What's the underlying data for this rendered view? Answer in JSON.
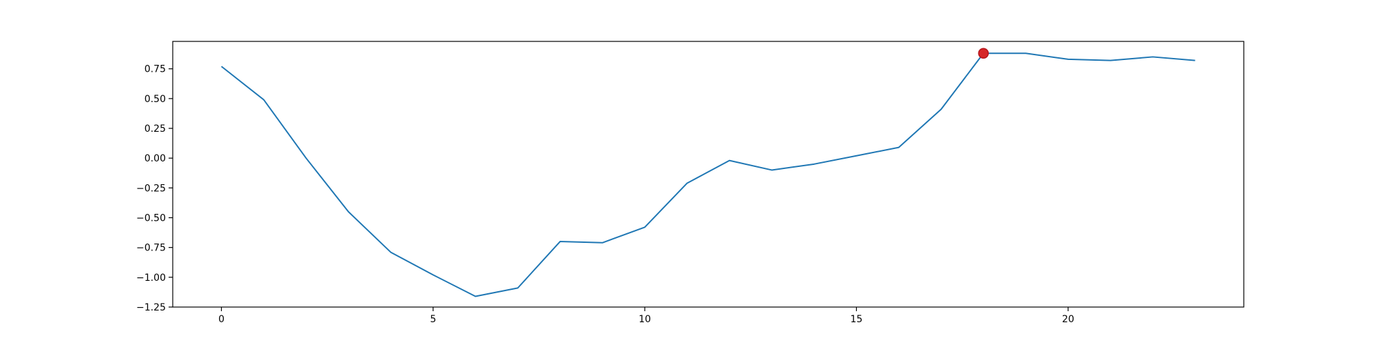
{
  "chart_data": {
    "type": "line",
    "title": "",
    "xlabel": "",
    "ylabel": "",
    "xlim": [
      -1.15,
      24.15
    ],
    "ylim": [
      -1.25,
      0.98
    ],
    "xticks": [
      0,
      5,
      10,
      15,
      20
    ],
    "xtick_labels": [
      "0",
      "5",
      "10",
      "15",
      "20"
    ],
    "yticks": [
      0.75,
      0.5,
      0.25,
      0.0,
      -0.25,
      -0.5,
      -0.75,
      -1.0,
      -1.25
    ],
    "ytick_labels": [
      "0.75",
      "0.50",
      "0.25",
      "0.00",
      "−0.25",
      "−0.50",
      "−0.75",
      "−1.00",
      "−1.25"
    ],
    "grid": false,
    "series": [
      {
        "x": [
          0,
          1,
          2,
          3,
          4,
          5,
          6,
          7,
          8,
          9,
          10,
          11,
          12,
          13,
          14,
          15,
          16,
          17,
          18,
          19,
          20,
          21,
          22,
          23
        ],
        "values": [
          0.77,
          0.49,
          0.0,
          -0.45,
          -0.79,
          -0.98,
          -1.16,
          -1.09,
          -0.7,
          -0.71,
          -0.58,
          -0.21,
          -0.02,
          -0.1,
          -0.05,
          0.02,
          0.09,
          0.41,
          0.88,
          0.88,
          0.83,
          0.82,
          0.85,
          0.82
        ],
        "color": "#1f77b4"
      }
    ],
    "highlight": {
      "x": 18,
      "y": 0.88,
      "color": "#d62728",
      "edge_color": "#b5161c"
    }
  }
}
